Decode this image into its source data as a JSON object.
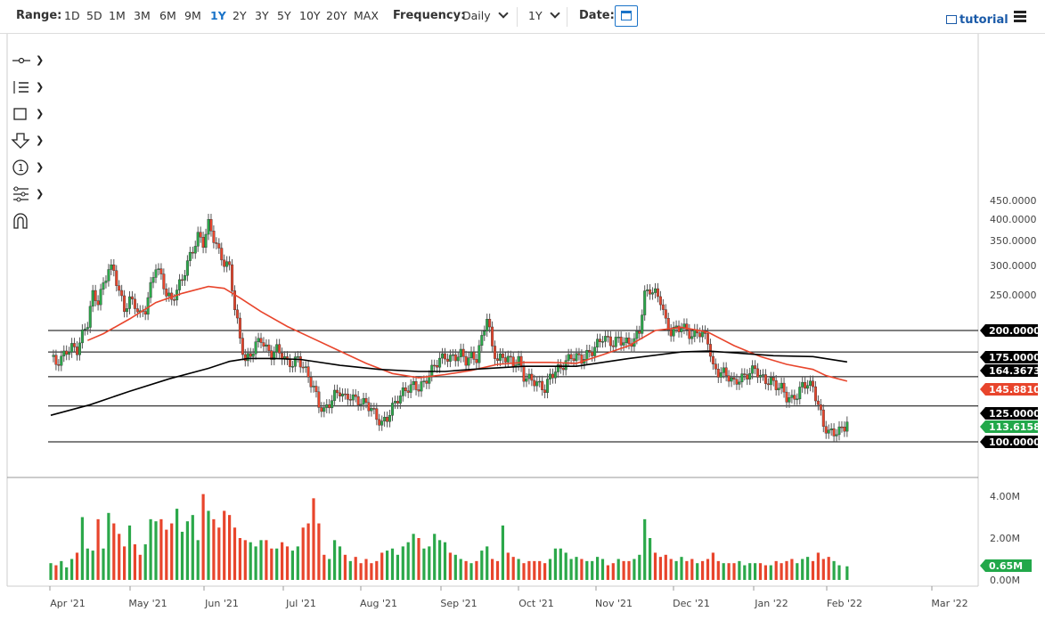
{
  "toolbar": {
    "range_label": "Range:",
    "ranges": [
      "1D",
      "5D",
      "1M",
      "3M",
      "6M",
      "9M",
      "1Y",
      "2Y",
      "3Y",
      "5Y",
      "10Y",
      "20Y",
      "MAX"
    ],
    "active_range": "1Y",
    "frequency_label": "Frequency:",
    "frequency_value": "Daily",
    "period_value": "1Y",
    "date_label": "Date:",
    "tutorial_label": "tutorial",
    "accent_color": "#1a73c8"
  },
  "tools": [
    "crosshair-tool",
    "fibonacci-tool",
    "rectangle-tool",
    "arrow-down-tool",
    "number-marker-tool",
    "pattern-tool",
    "magnet-tool"
  ],
  "chart_data": {
    "type": "candlestick",
    "x_ticks": [
      "Apr '21",
      "May '21",
      "Jun '21",
      "Jul '21",
      "Aug '21",
      "Sep '21",
      "Oct '21",
      "Nov '21",
      "Dec '21",
      "Jan '22",
      "Feb '22",
      "Mar '22"
    ],
    "price_axis": {
      "ylim": [
        100,
        450
      ],
      "ticks": [
        "450.0000",
        "400.0000",
        "350.0000",
        "300.0000",
        "250.0000"
      ],
      "scale": "log"
    },
    "volume_axis": {
      "ylim": [
        0,
        4000000
      ],
      "ticks": [
        "4.00M",
        "2.00M",
        "0.00M"
      ]
    },
    "horizontal_lines": [
      200,
      175,
      150,
      125,
      100
    ],
    "price_labels": [
      {
        "text": "200.0000",
        "value": 200,
        "color": "#000000"
      },
      {
        "text": "175.0000",
        "value": 175,
        "color": "#000000"
      },
      {
        "text": "164.3673",
        "value": 164.3673,
        "color": "#000000"
      },
      {
        "text": "145.8810",
        "value": 145.881,
        "color": "#e8452c"
      },
      {
        "text": "125.0000",
        "value": 125,
        "color": "#000000"
      },
      {
        "text": "113.6158",
        "value": 113.6158,
        "color": "#22a84a"
      },
      {
        "text": "100.0000",
        "value": 100,
        "color": "#000000"
      }
    ],
    "volume_label": {
      "text": "0.65M",
      "value": 650000,
      "color": "#22a84a"
    },
    "up_color": "#2ba84a",
    "down_color": "#e8452c",
    "ma_fast_color": "#e8452c",
    "ma_slow_color": "#000000",
    "closes": [
      [
        0,
        170
      ],
      [
        2,
        163
      ],
      [
        4,
        168
      ],
      [
        6,
        176
      ],
      [
        8,
        180
      ],
      [
        10,
        177
      ],
      [
        12,
        195
      ],
      [
        14,
        210
      ],
      [
        16,
        250
      ],
      [
        18,
        240
      ],
      [
        20,
        265
      ],
      [
        22,
        295
      ],
      [
        24,
        290
      ],
      [
        26,
        255
      ],
      [
        28,
        228
      ],
      [
        30,
        242
      ],
      [
        32,
        235
      ],
      [
        34,
        220
      ],
      [
        36,
        228
      ],
      [
        38,
        262
      ],
      [
        40,
        300
      ],
      [
        42,
        278
      ],
      [
        44,
        252
      ],
      [
        46,
        240
      ],
      [
        48,
        258
      ],
      [
        50,
        275
      ],
      [
        52,
        305
      ],
      [
        54,
        330
      ],
      [
        56,
        360
      ],
      [
        58,
        345
      ],
      [
        60,
        388
      ],
      [
        62,
        356
      ],
      [
        64,
        325
      ],
      [
        66,
        305
      ],
      [
        68,
        296
      ],
      [
        70,
        230
      ],
      [
        72,
        190
      ],
      [
        74,
        165
      ],
      [
        76,
        172
      ],
      [
        78,
        183
      ],
      [
        80,
        190
      ],
      [
        82,
        178
      ],
      [
        84,
        172
      ],
      [
        86,
        178
      ],
      [
        88,
        172
      ],
      [
        90,
        163
      ],
      [
        92,
        163
      ],
      [
        94,
        168
      ],
      [
        96,
        160
      ],
      [
        98,
        150
      ],
      [
        100,
        140
      ],
      [
        102,
        126
      ],
      [
        104,
        121
      ],
      [
        106,
        127
      ],
      [
        108,
        134
      ],
      [
        110,
        137
      ],
      [
        112,
        131
      ],
      [
        114,
        133
      ],
      [
        116,
        130
      ],
      [
        118,
        128
      ],
      [
        120,
        127
      ],
      [
        122,
        123
      ],
      [
        124,
        116
      ],
      [
        126,
        112
      ],
      [
        128,
        116
      ],
      [
        130,
        124
      ],
      [
        132,
        131
      ],
      [
        134,
        136
      ],
      [
        136,
        140
      ],
      [
        138,
        142
      ],
      [
        140,
        140
      ],
      [
        142,
        144
      ],
      [
        144,
        152
      ],
      [
        146,
        161
      ],
      [
        148,
        167
      ],
      [
        150,
        170
      ],
      [
        152,
        168
      ],
      [
        154,
        170
      ],
      [
        156,
        173
      ],
      [
        158,
        166
      ],
      [
        160,
        170
      ],
      [
        162,
        168
      ],
      [
        164,
        190
      ],
      [
        166,
        218
      ],
      [
        168,
        180
      ],
      [
        170,
        166
      ],
      [
        172,
        170
      ],
      [
        174,
        168
      ],
      [
        176,
        163
      ],
      [
        178,
        166
      ],
      [
        180,
        150
      ],
      [
        182,
        148
      ],
      [
        184,
        146
      ],
      [
        186,
        142
      ],
      [
        188,
        139
      ],
      [
        190,
        150
      ],
      [
        192,
        156
      ],
      [
        194,
        158
      ],
      [
        196,
        165
      ],
      [
        198,
        170
      ],
      [
        200,
        170
      ],
      [
        202,
        167
      ],
      [
        204,
        172
      ],
      [
        206,
        176
      ],
      [
        208,
        184
      ],
      [
        210,
        192
      ],
      [
        212,
        188
      ],
      [
        214,
        184
      ],
      [
        216,
        190
      ],
      [
        218,
        186
      ],
      [
        220,
        185
      ],
      [
        222,
        188
      ],
      [
        224,
        200
      ],
      [
        226,
        250
      ],
      [
        228,
        258
      ],
      [
        230,
        252
      ],
      [
        232,
        242
      ],
      [
        234,
        210
      ],
      [
        236,
        198
      ],
      [
        238,
        202
      ],
      [
        240,
        205
      ],
      [
        242,
        200
      ],
      [
        244,
        192
      ],
      [
        246,
        199
      ],
      [
        248,
        196
      ],
      [
        250,
        188
      ],
      [
        252,
        158
      ],
      [
        254,
        154
      ],
      [
        256,
        154
      ],
      [
        258,
        150
      ],
      [
        260,
        144
      ],
      [
        262,
        148
      ],
      [
        264,
        150
      ],
      [
        266,
        154
      ],
      [
        268,
        158
      ],
      [
        270,
        150
      ],
      [
        272,
        146
      ],
      [
        274,
        146
      ],
      [
        276,
        142
      ],
      [
        278,
        140
      ],
      [
        280,
        132
      ],
      [
        282,
        130
      ],
      [
        284,
        134
      ],
      [
        286,
        142
      ],
      [
        288,
        144
      ],
      [
        290,
        140
      ],
      [
        292,
        126
      ],
      [
        294,
        111
      ],
      [
        296,
        106
      ],
      [
        298,
        106
      ],
      [
        300,
        107
      ],
      [
        302,
        110
      ],
      [
        303,
        113.6
      ]
    ],
    "ma_fast": [
      [
        14,
        188
      ],
      [
        20,
        196
      ],
      [
        30,
        215
      ],
      [
        40,
        238
      ],
      [
        50,
        252
      ],
      [
        60,
        263
      ],
      [
        66,
        260
      ],
      [
        72,
        245
      ],
      [
        80,
        225
      ],
      [
        90,
        205
      ],
      [
        100,
        190
      ],
      [
        110,
        176
      ],
      [
        120,
        163
      ],
      [
        130,
        153
      ],
      [
        140,
        149
      ],
      [
        150,
        152
      ],
      [
        160,
        156
      ],
      [
        170,
        162
      ],
      [
        180,
        164
      ],
      [
        190,
        164
      ],
      [
        200,
        163
      ],
      [
        210,
        172
      ],
      [
        220,
        182
      ],
      [
        230,
        200
      ],
      [
        240,
        204
      ],
      [
        250,
        198
      ],
      [
        260,
        182
      ],
      [
        270,
        170
      ],
      [
        280,
        162
      ],
      [
        290,
        157
      ],
      [
        295,
        151
      ],
      [
        303,
        145.9
      ]
    ],
    "ma_slow": [
      [
        0,
        118
      ],
      [
        15,
        126
      ],
      [
        30,
        137
      ],
      [
        45,
        148
      ],
      [
        60,
        158
      ],
      [
        68,
        165
      ],
      [
        75,
        168
      ],
      [
        85,
        168
      ],
      [
        95,
        167
      ],
      [
        110,
        161
      ],
      [
        125,
        157
      ],
      [
        140,
        155
      ],
      [
        150,
        155
      ],
      [
        160,
        157
      ],
      [
        180,
        160
      ],
      [
        200,
        160
      ],
      [
        220,
        168
      ],
      [
        240,
        175
      ],
      [
        250,
        176
      ],
      [
        260,
        174
      ],
      [
        275,
        171
      ],
      [
        290,
        170
      ],
      [
        303,
        164.4
      ]
    ],
    "volume_m": [
      [
        0,
        0.8
      ],
      [
        2,
        0.7
      ],
      [
        4,
        0.9
      ],
      [
        6,
        0.6
      ],
      [
        8,
        1.0
      ],
      [
        10,
        1.3
      ],
      [
        12,
        3.0
      ],
      [
        14,
        1.5
      ],
      [
        16,
        1.4
      ],
      [
        18,
        2.9
      ],
      [
        20,
        1.5
      ],
      [
        22,
        3.2
      ],
      [
        24,
        2.7
      ],
      [
        26,
        2.2
      ],
      [
        28,
        1.6
      ],
      [
        30,
        2.6
      ],
      [
        32,
        1.7
      ],
      [
        34,
        1.2
      ],
      [
        36,
        1.7
      ],
      [
        38,
        2.9
      ],
      [
        40,
        2.8
      ],
      [
        42,
        2.9
      ],
      [
        44,
        2.4
      ],
      [
        46,
        2.7
      ],
      [
        48,
        3.4
      ],
      [
        50,
        2.3
      ],
      [
        52,
        2.8
      ],
      [
        54,
        3.1
      ],
      [
        56,
        1.9
      ],
      [
        58,
        4.1
      ],
      [
        60,
        3.3
      ],
      [
        62,
        2.9
      ],
      [
        64,
        2.5
      ],
      [
        66,
        3.3
      ],
      [
        68,
        3.1
      ],
      [
        70,
        2.5
      ],
      [
        72,
        2.0
      ],
      [
        74,
        1.9
      ],
      [
        76,
        1.8
      ],
      [
        78,
        1.6
      ],
      [
        80,
        1.9
      ],
      [
        82,
        1.9
      ],
      [
        84,
        1.5
      ],
      [
        86,
        1.5
      ],
      [
        88,
        1.8
      ],
      [
        90,
        1.6
      ],
      [
        92,
        1.4
      ],
      [
        94,
        1.6
      ],
      [
        96,
        2.5
      ],
      [
        98,
        2.7
      ],
      [
        100,
        3.9
      ],
      [
        102,
        2.7
      ],
      [
        104,
        1.2
      ],
      [
        106,
        1.0
      ],
      [
        108,
        1.9
      ],
      [
        110,
        1.6
      ],
      [
        112,
        1.2
      ],
      [
        114,
        0.9
      ],
      [
        116,
        1.1
      ],
      [
        118,
        0.8
      ],
      [
        120,
        1.0
      ],
      [
        122,
        0.8
      ],
      [
        124,
        0.9
      ],
      [
        126,
        1.3
      ],
      [
        128,
        1.4
      ],
      [
        130,
        1.5
      ],
      [
        132,
        1.2
      ],
      [
        134,
        1.6
      ],
      [
        136,
        1.8
      ],
      [
        138,
        2.2
      ],
      [
        140,
        2.0
      ],
      [
        142,
        1.5
      ],
      [
        144,
        1.6
      ],
      [
        146,
        2.2
      ],
      [
        148,
        1.9
      ],
      [
        150,
        1.8
      ],
      [
        152,
        1.3
      ],
      [
        154,
        1.2
      ],
      [
        156,
        1.0
      ],
      [
        158,
        0.9
      ],
      [
        160,
        0.8
      ],
      [
        162,
        0.9
      ],
      [
        164,
        1.4
      ],
      [
        166,
        1.6
      ],
      [
        168,
        1.0
      ],
      [
        170,
        0.9
      ],
      [
        172,
        2.6
      ],
      [
        174,
        1.3
      ],
      [
        176,
        1.1
      ],
      [
        178,
        1.0
      ],
      [
        180,
        0.8
      ],
      [
        182,
        0.9
      ],
      [
        184,
        0.9
      ],
      [
        186,
        0.9
      ],
      [
        188,
        0.8
      ],
      [
        190,
        1.0
      ],
      [
        192,
        1.5
      ],
      [
        194,
        1.5
      ],
      [
        196,
        1.3
      ],
      [
        198,
        1.0
      ],
      [
        200,
        1.1
      ],
      [
        202,
        1.0
      ],
      [
        204,
        0.9
      ],
      [
        206,
        0.9
      ],
      [
        208,
        1.1
      ],
      [
        210,
        1.0
      ],
      [
        212,
        0.7
      ],
      [
        214,
        0.8
      ],
      [
        216,
        1.0
      ],
      [
        218,
        0.9
      ],
      [
        220,
        0.9
      ],
      [
        222,
        1.0
      ],
      [
        224,
        1.2
      ],
      [
        226,
        2.9
      ],
      [
        228,
        2.0
      ],
      [
        230,
        1.3
      ],
      [
        232,
        1.1
      ],
      [
        234,
        1.2
      ],
      [
        236,
        1.0
      ],
      [
        238,
        0.9
      ],
      [
        240,
        1.1
      ],
      [
        242,
        0.9
      ],
      [
        244,
        1.0
      ],
      [
        246,
        0.8
      ],
      [
        248,
        0.9
      ],
      [
        250,
        1.0
      ],
      [
        252,
        1.3
      ],
      [
        254,
        0.9
      ],
      [
        256,
        0.8
      ],
      [
        258,
        0.8
      ],
      [
        260,
        0.8
      ],
      [
        262,
        0.9
      ],
      [
        264,
        0.7
      ],
      [
        266,
        0.8
      ],
      [
        268,
        0.8
      ],
      [
        270,
        0.8
      ],
      [
        272,
        0.7
      ],
      [
        274,
        0.7
      ],
      [
        276,
        0.9
      ],
      [
        278,
        0.8
      ],
      [
        280,
        0.9
      ],
      [
        282,
        1.0
      ],
      [
        284,
        0.8
      ],
      [
        286,
        1.0
      ],
      [
        288,
        1.1
      ],
      [
        290,
        0.9
      ],
      [
        292,
        1.3
      ],
      [
        294,
        1.0
      ],
      [
        296,
        1.1
      ],
      [
        298,
        0.9
      ],
      [
        300,
        0.7
      ],
      [
        303,
        0.65
      ]
    ]
  }
}
